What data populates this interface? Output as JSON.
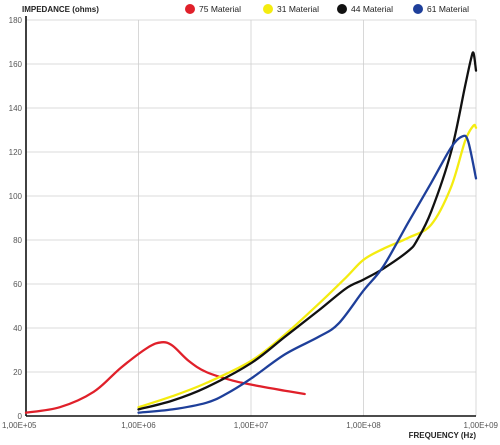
{
  "chart_data": {
    "type": "line",
    "title": "",
    "ylabel": "IMPEDANCE (ohms)",
    "xlabel": "FREQUENCY (Hz)",
    "x_scale": "log",
    "xlim": [
      100000,
      1000000000
    ],
    "ylim": [
      0,
      180
    ],
    "x_ticks": [
      100000,
      1000000,
      10000000,
      100000000,
      1000000000
    ],
    "x_tick_labels": [
      "1,00E+05",
      "1,00E+06",
      "1,00E+07",
      "1,00E+08",
      "1,00E+09"
    ],
    "y_ticks": [
      0,
      20,
      40,
      60,
      80,
      100,
      120,
      140,
      160,
      180
    ],
    "y_tick_labels": [
      "0",
      "20",
      "40",
      "60",
      "80",
      "100",
      "120",
      "140",
      "160",
      "180"
    ],
    "grid": true,
    "legend_position": "top",
    "series": [
      {
        "name": "75 Material",
        "color": "#e0202a",
        "points": [
          [
            100000,
            1.5
          ],
          [
            200000,
            4
          ],
          [
            400000,
            11
          ],
          [
            700000,
            22
          ],
          [
            1200000,
            31
          ],
          [
            1600000,
            33.5
          ],
          [
            2000000,
            32
          ],
          [
            2800000,
            25
          ],
          [
            4000000,
            20
          ],
          [
            7000000,
            16
          ],
          [
            12000000,
            13.5
          ],
          [
            20000000,
            11.5
          ],
          [
            30000000,
            10
          ]
        ]
      },
      {
        "name": "31 Material",
        "color": "#f4ec10",
        "points": [
          [
            1000000,
            4
          ],
          [
            2000000,
            9
          ],
          [
            4000000,
            15
          ],
          [
            10000000,
            25
          ],
          [
            20000000,
            37
          ],
          [
            40000000,
            51
          ],
          [
            70000000,
            63
          ],
          [
            100000000,
            71
          ],
          [
            150000000,
            76
          ],
          [
            250000000,
            81
          ],
          [
            400000000,
            87
          ],
          [
            600000000,
            104
          ],
          [
            800000000,
            125
          ],
          [
            950000000,
            132
          ],
          [
            1000000000,
            131
          ]
        ]
      },
      {
        "name": "44 Material",
        "color": "#111111",
        "points": [
          [
            1000000,
            3
          ],
          [
            2000000,
            7
          ],
          [
            4000000,
            13
          ],
          [
            10000000,
            24
          ],
          [
            20000000,
            36
          ],
          [
            40000000,
            48
          ],
          [
            70000000,
            58
          ],
          [
            100000000,
            62
          ],
          [
            150000000,
            67
          ],
          [
            250000000,
            75
          ],
          [
            300000000,
            80
          ],
          [
            400000000,
            93
          ],
          [
            600000000,
            120
          ],
          [
            800000000,
            150
          ],
          [
            900000000,
            162
          ],
          [
            950000000,
            165
          ],
          [
            1000000000,
            157
          ]
        ]
      },
      {
        "name": "61 Material",
        "color": "#1e3f9a",
        "points": [
          [
            1000000,
            1.5
          ],
          [
            2000000,
            3
          ],
          [
            4000000,
            6
          ],
          [
            6000000,
            10
          ],
          [
            10000000,
            17
          ],
          [
            20000000,
            28
          ],
          [
            40000000,
            36
          ],
          [
            60000000,
            42
          ],
          [
            100000000,
            57
          ],
          [
            150000000,
            68
          ],
          [
            250000000,
            88
          ],
          [
            400000000,
            106
          ],
          [
            600000000,
            122
          ],
          [
            750000000,
            127
          ],
          [
            850000000,
            125
          ],
          [
            1000000000,
            108
          ]
        ]
      }
    ]
  }
}
